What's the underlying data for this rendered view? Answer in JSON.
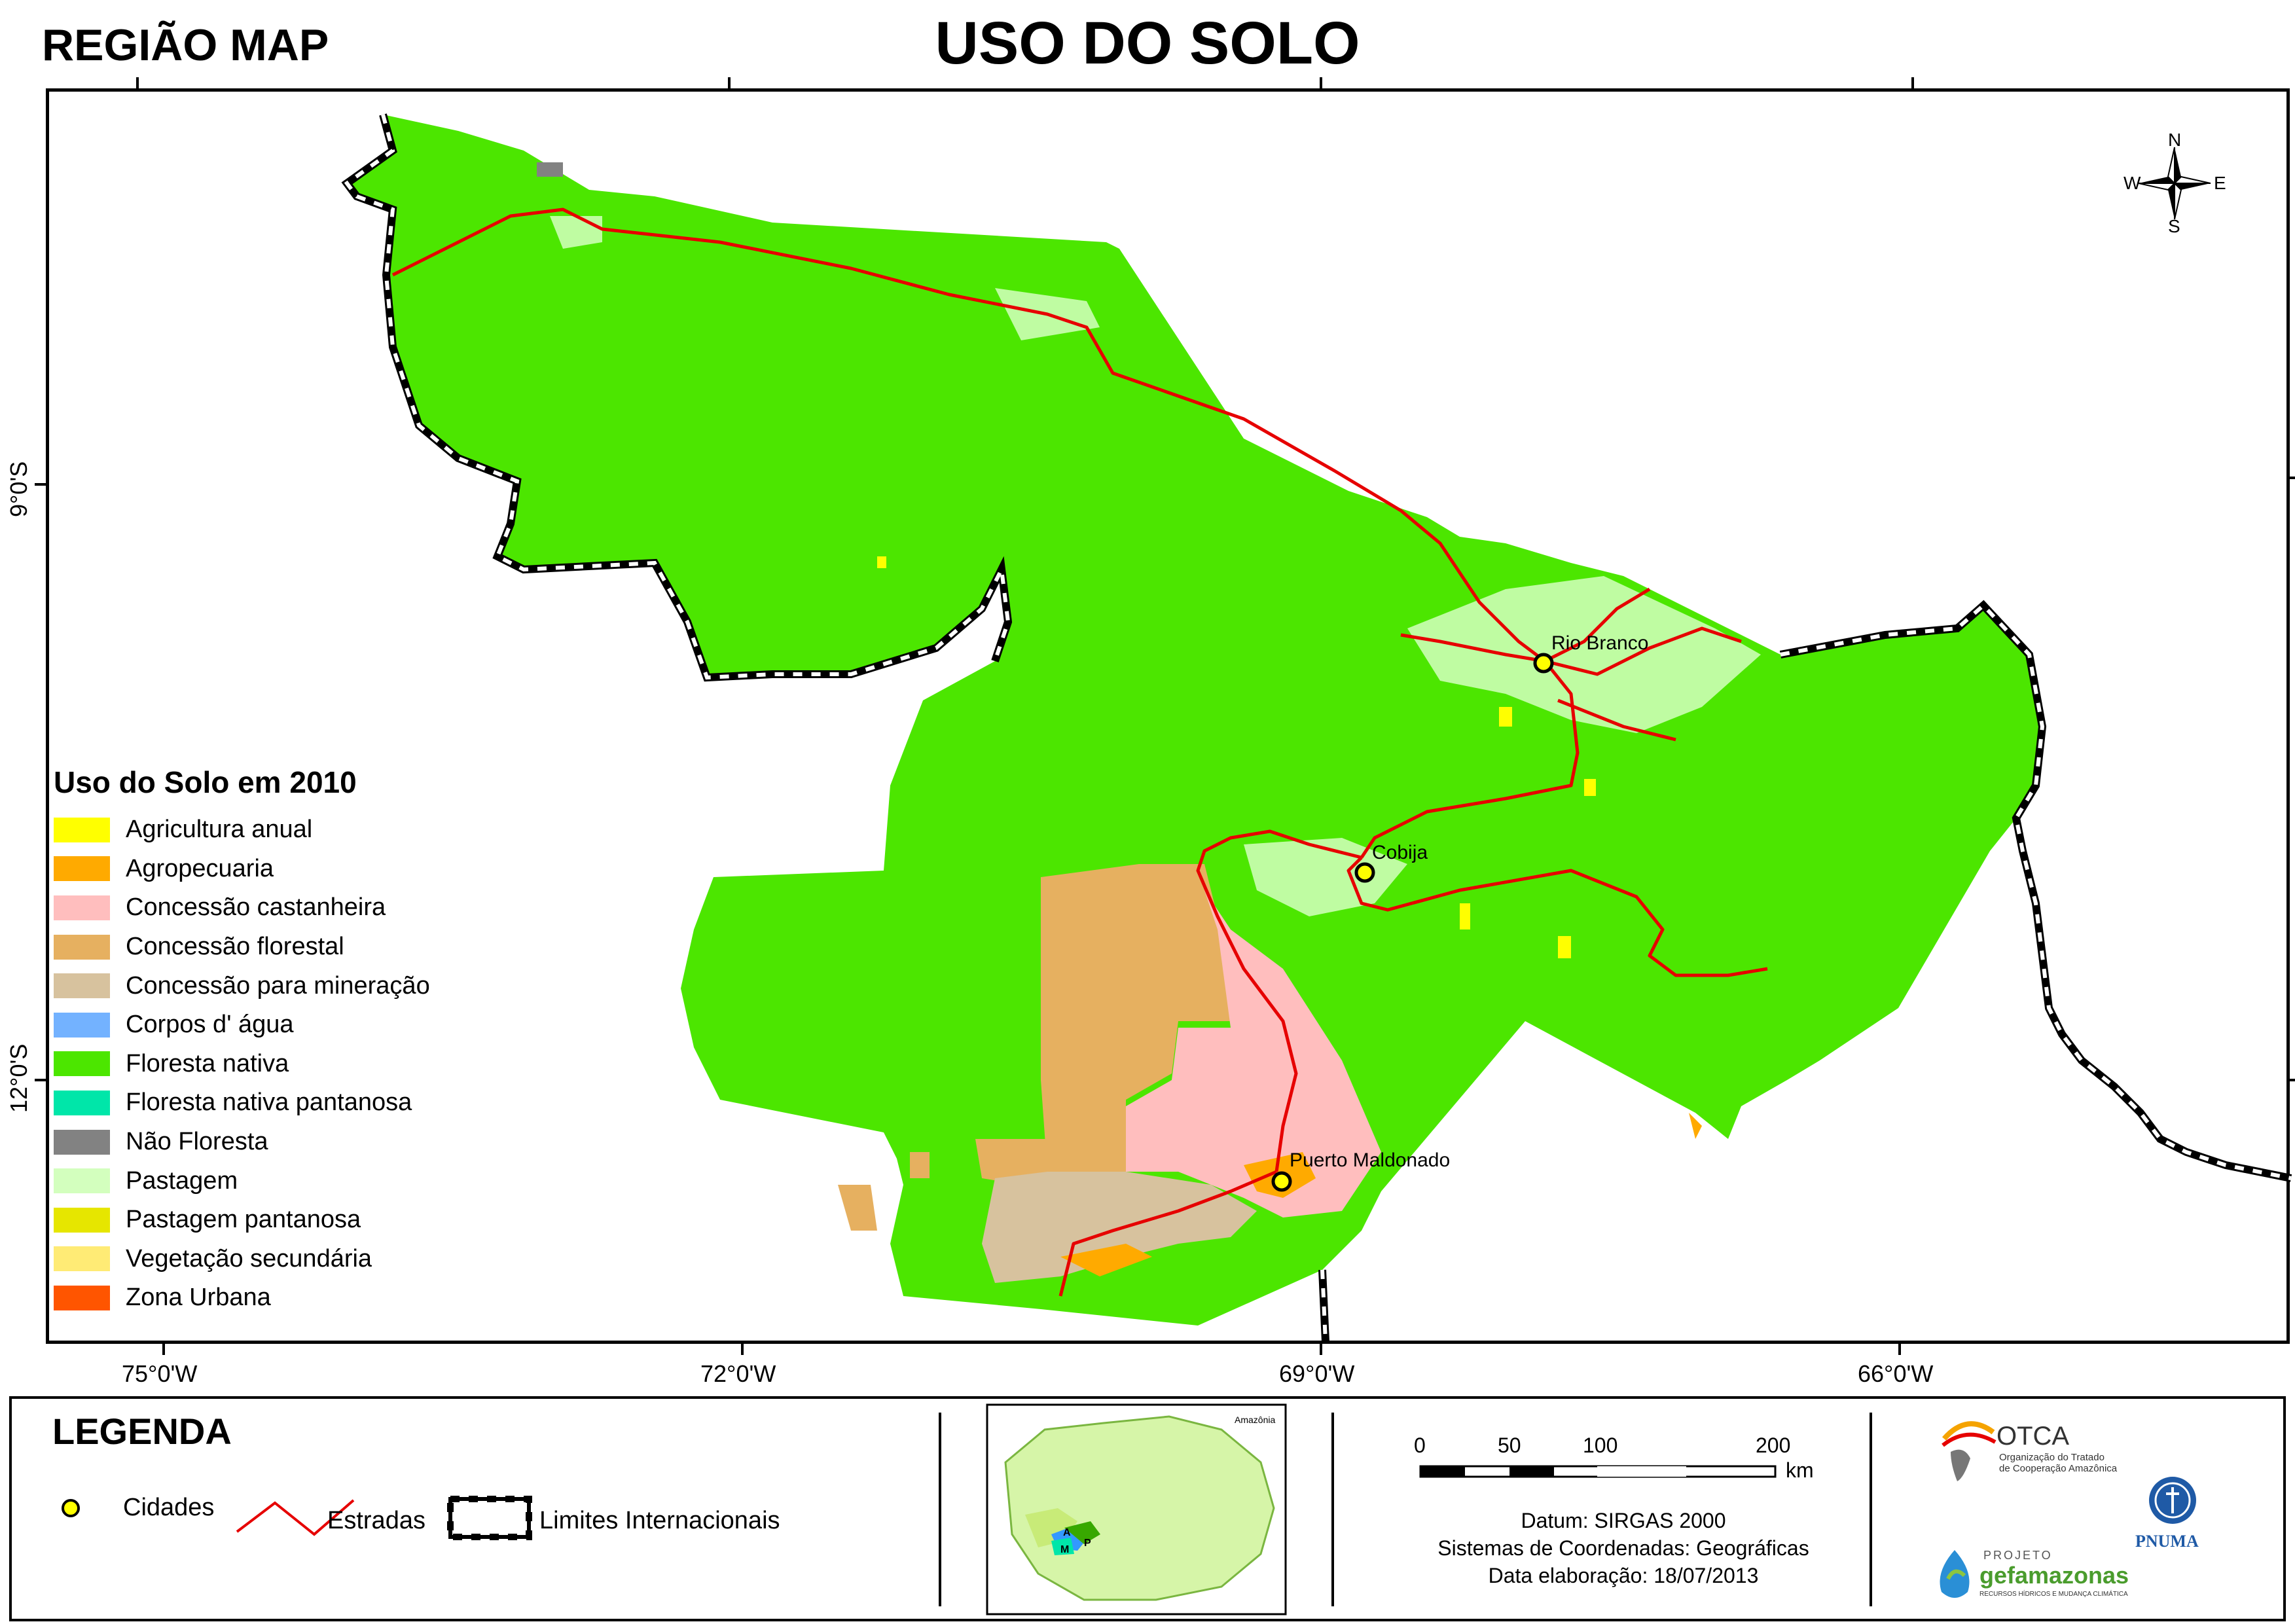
{
  "header": {
    "region_label": "REGIÃO MAP",
    "title": "USO DO SOLO"
  },
  "map": {
    "longitude_ticks": [
      "75°0'W",
      "72°0'W",
      "69°0'W",
      "66°0'W"
    ],
    "latitude_ticks": [
      "9°0'S",
      "12°0'S"
    ],
    "cities": [
      "Rio Branco",
      "Cobija",
      "Puerto Maldonado"
    ],
    "compass": {
      "n": "N",
      "s": "S",
      "e": "E",
      "w": "W"
    }
  },
  "land_use_legend": {
    "title": "Uso do Solo em 2010",
    "items": [
      {
        "label": "Agricultura anual",
        "color": "#ffff00"
      },
      {
        "label": "Agropecuaria",
        "color": "#ffaa00"
      },
      {
        "label": "Concessão castanheira",
        "color": "#ffbebe"
      },
      {
        "label": "Concessão florestal",
        "color": "#e6b060"
      },
      {
        "label": "Concessão para mineração",
        "color": "#d7c29e"
      },
      {
        "label": "Corpos d' água",
        "color": "#73b2ff"
      },
      {
        "label": "Floresta nativa",
        "color": "#4ce600"
      },
      {
        "label": "Floresta nativa pantanosa",
        "color": "#00e6a9"
      },
      {
        "label": "Não Floresta",
        "color": "#828282"
      },
      {
        "label": "Pastagem",
        "color": "#d3ffbe"
      },
      {
        "label": "Pastagem pantanosa",
        "color": "#e6e600"
      },
      {
        "label": "Vegetação secundária",
        "color": "#ffeb75"
      },
      {
        "label": "Zona Urbana",
        "color": "#ff5500"
      }
    ]
  },
  "footer": {
    "legend_title": "LEGENDA",
    "symbols": {
      "cities": "Cidades",
      "roads": "Estradas",
      "borders": "Limites Internacionais"
    },
    "inset": {
      "label": "Amazônia",
      "markers": [
        "A",
        "M",
        "P"
      ]
    },
    "scale": {
      "ticks": [
        "0",
        "50",
        "100",
        "200"
      ],
      "unit": "km"
    },
    "info": {
      "datum": "Datum: SIRGAS 2000",
      "coords": "Sistemas de Coordenadas: Geográficas",
      "date": "Data elaboração: 18/07/2013"
    },
    "logos": {
      "otca_name": "OTCA",
      "otca_sub1": "Organização do Tratado",
      "otca_sub2": "de Cooperação Amazônica",
      "pnuma": "PNUMA",
      "gef_prefix": "PROJETO",
      "gef_name": "gefamazonas",
      "gef_sub": "RECURSOS HÍDRICOS E MUDANÇA CLIMÁTICA"
    }
  },
  "colors": {
    "road": "#e60000",
    "city_fill": "#ffff00",
    "forest": "#4ce600"
  }
}
